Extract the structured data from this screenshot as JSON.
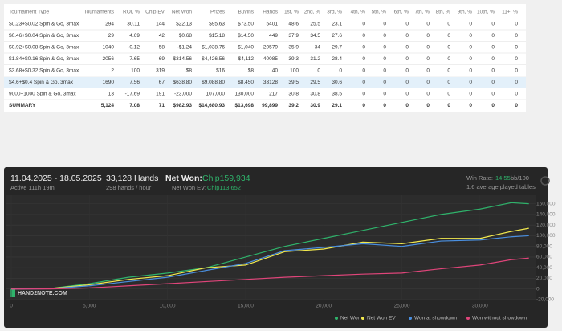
{
  "table": {
    "columns": [
      "Tournament Type",
      "Tournaments",
      "ROI, %",
      "Chip EV",
      "Net Won",
      "Prizes",
      "Buyins",
      "Hands",
      "1st, %",
      "2nd, %",
      "3rd, %",
      "4th, %",
      "5th, %",
      "6th, %",
      "7th, %",
      "8th, %",
      "9th, %",
      "10th, %",
      "11+, %"
    ],
    "rows": [
      [
        "$0.23+$0.02 Spin & Go, 3max",
        "294",
        "30.11",
        "144",
        "$22.13",
        "$95.63",
        "$73.50",
        "5401",
        "48.6",
        "25.5",
        "23.1",
        "0",
        "0",
        "0",
        "0",
        "0",
        "0",
        "0",
        "0"
      ],
      [
        "$0.46+$0.04 Spin & Go, 3max",
        "29",
        "4.69",
        "42",
        "$0.68",
        "$15.18",
        "$14.50",
        "449",
        "37.9",
        "34.5",
        "27.6",
        "0",
        "0",
        "0",
        "0",
        "0",
        "0",
        "0",
        "0"
      ],
      [
        "$0.92+$0.08 Spin & Go, 3max",
        "1040",
        "-0.12",
        "58",
        "-$1.24",
        "$1,038.76",
        "$1,040",
        "20579",
        "35.9",
        "34",
        "29.7",
        "0",
        "0",
        "0",
        "0",
        "0",
        "0",
        "0",
        "0"
      ],
      [
        "$1.84+$0.16 Spin & Go, 3max",
        "2056",
        "7.65",
        "69",
        "$314.56",
        "$4,426.56",
        "$4,112",
        "40085",
        "39.3",
        "31.2",
        "28.4",
        "0",
        "0",
        "0",
        "0",
        "0",
        "0",
        "0",
        "0"
      ],
      [
        "$3.68+$0.32 Spin & Go, 3max",
        "2",
        "100",
        "319",
        "$8",
        "$16",
        "$8",
        "40",
        "100",
        "0",
        "0",
        "0",
        "0",
        "0",
        "0",
        "0",
        "0",
        "0",
        "0"
      ],
      [
        "$4.6+$0.4 Spin & Go, 3max",
        "1690",
        "7.56",
        "67",
        "$638.80",
        "$9,088.80",
        "$8,450",
        "33128",
        "39.5",
        "29.5",
        "30.6",
        "0",
        "0",
        "0",
        "0",
        "0",
        "0",
        "0",
        "0"
      ],
      [
        "9000+1000 Spin & Go, 3max",
        "13",
        "-17.69",
        "191",
        "-23,000",
        "107,000",
        "130,000",
        "217",
        "30.8",
        "30.8",
        "38.5",
        "0",
        "0",
        "0",
        "0",
        "0",
        "0",
        "0",
        "0"
      ],
      [
        "SUMMARY",
        "5,124",
        "7.08",
        "71",
        "$982.93",
        "$14,680.93",
        "$13,698",
        "99,899",
        "39.2",
        "30.9",
        "29.1",
        "0",
        "0",
        "0",
        "0",
        "0",
        "0",
        "0",
        "0"
      ]
    ]
  },
  "graph": {
    "date_range": "11.04.2025 - 18.05.2025",
    "active": "Active 111h 19m",
    "hands": "33,128 Hands",
    "hands_per_hour": "298 hands / hour",
    "net_won_label": "Net Won:",
    "net_won_value": "Chip159,934",
    "net_won_ev_label": "Net Won  EV:",
    "net_won_ev_value": "Chip113,652",
    "win_rate_label": "Win Rate:",
    "win_rate_value": "14.55",
    "win_rate_unit": "bb/100",
    "tables": "1.6 average played tables",
    "watermark": "HAND2NOTE.COM",
    "chart": {
      "type": "line",
      "x": [
        0,
        2500,
        5000,
        7500,
        10000,
        12500,
        15000,
        17500,
        20000,
        22500,
        25000,
        27500,
        30000,
        32000,
        33128
      ],
      "xlim": [
        0,
        33400
      ],
      "xticks": [
        0,
        {
          "value": 5000,
          "label": "5,000"
        },
        {
          "value": 10000,
          "label": "10,000"
        },
        {
          "value": 15000,
          "label": "15,000"
        },
        {
          "value": 20000,
          "label": "20,000"
        },
        {
          "value": 25000,
          "label": "25,000"
        },
        {
          "value": 30000,
          "label": "30,000"
        }
      ],
      "ylim": [
        -20000,
        170000
      ],
      "yticks": [
        {
          "value": -20000,
          "label": "-20,000"
        },
        0,
        {
          "value": 20000,
          "label": "20,000"
        },
        {
          "value": 40000,
          "label": "40,000"
        },
        {
          "value": 60000,
          "label": "60,000"
        },
        {
          "value": 80000,
          "label": "80,000"
        },
        {
          "value": 100000,
          "label": "100,000"
        },
        {
          "value": 120000,
          "label": "120,000"
        },
        {
          "value": 140000,
          "label": "140,000"
        },
        {
          "value": 160000,
          "label": "160,000"
        }
      ],
      "grid": true,
      "series": [
        {
          "name": "Net Won",
          "color": "#2fb36b",
          "values": [
            0,
            1000,
            10000,
            22000,
            30000,
            40000,
            60000,
            80000,
            95000,
            110000,
            125000,
            140000,
            150000,
            162000,
            160000
          ]
        },
        {
          "name": "Net Won  EV",
          "color": "#f2e94e",
          "values": [
            0,
            1000,
            8000,
            18000,
            25000,
            40000,
            45000,
            70000,
            75000,
            88000,
            85000,
            95000,
            95000,
            108000,
            114000
          ]
        },
        {
          "name": "Won at showdown",
          "color": "#4a8fe0",
          "values": [
            0,
            500,
            6000,
            14000,
            22000,
            35000,
            48000,
            72000,
            78000,
            85000,
            80000,
            90000,
            92000,
            98000,
            100000
          ]
        },
        {
          "name": "Won without showdown",
          "color": "#e0457a",
          "values": [
            0,
            200,
            2000,
            6000,
            10000,
            14000,
            18000,
            22000,
            25000,
            28000,
            30000,
            38000,
            45000,
            55000,
            58000
          ]
        }
      ]
    }
  }
}
